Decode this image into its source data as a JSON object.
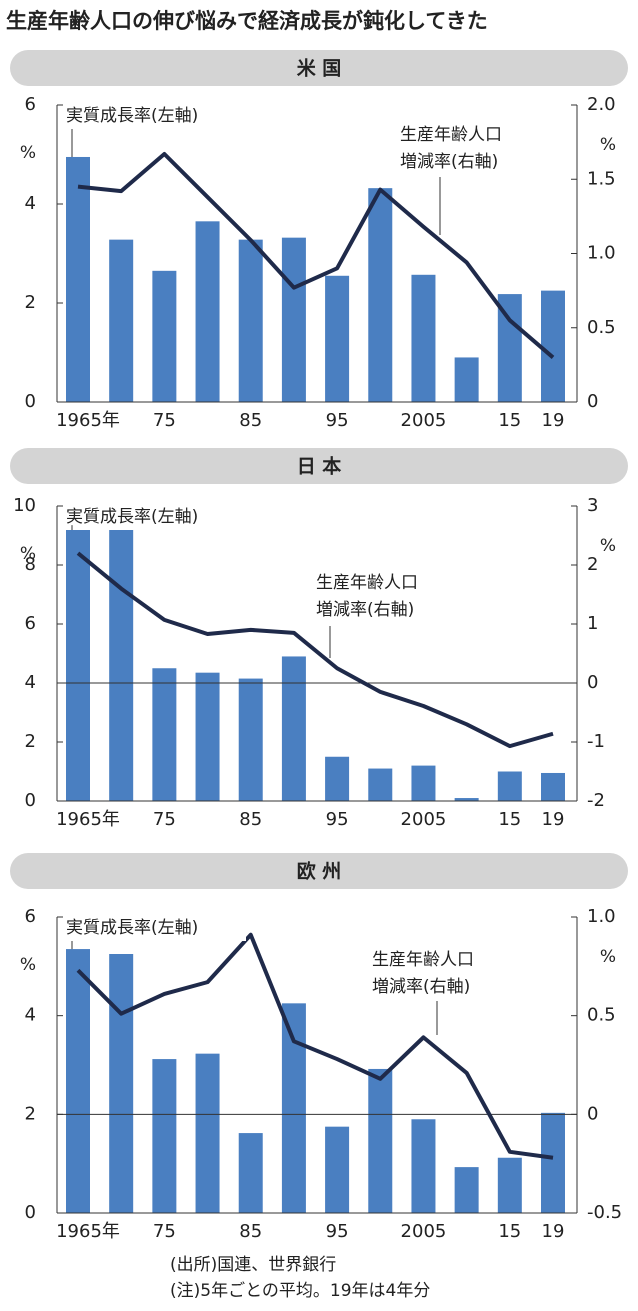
{
  "title": "生産年齢人口の伸び悩みで経済成長が鈍化してきた",
  "notes": [
    "(出所)国連、世界銀行",
    "(注)5年ごとの平均。19年は4年分"
  ],
  "chart_data": [
    {
      "type": "bar_line",
      "title": "米 国",
      "categories": [
        "1965年",
        null,
        "75",
        null,
        "85",
        null,
        "95",
        null,
        "2005",
        null,
        "15",
        "19"
      ],
      "ylim": [
        0,
        6
      ],
      "yticks": [
        0,
        2,
        4,
        6
      ],
      "y_unit": "%",
      "y2lim": [
        0,
        2
      ],
      "y2ticks": [
        0,
        0.5,
        {
          "value": 1,
          "label": "1.0"
        },
        1.5,
        {
          "value": 2,
          "label": "2.0"
        }
      ],
      "y2_unit": "%",
      "zero_line": false,
      "series": [
        {
          "name": "実質成長率(左軸)",
          "color": "#4a7fc1",
          "values": [
            4.95,
            3.28,
            2.65,
            3.65,
            3.28,
            3.32,
            2.55,
            4.32,
            2.57,
            0.9,
            2.18,
            2.25
          ]
        },
        {
          "name": "生産年齢人口\n増減率(右軸)",
          "color": "#1f2a4a",
          "axis": "y2",
          "values": [
            1.45,
            1.42,
            1.67,
            1.38,
            1.09,
            0.77,
            0.9,
            1.43,
            1.18,
            0.94,
            0.55,
            0.3
          ]
        }
      ]
    },
    {
      "type": "bar_line",
      "title": "日 本",
      "categories": [
        "1965年",
        null,
        "75",
        null,
        "85",
        null,
        "95",
        null,
        "2005",
        null,
        "15",
        "19"
      ],
      "ylim": [
        0,
        10
      ],
      "yticks": [
        0,
        2,
        4,
        6,
        8,
        10
      ],
      "y_unit": "%",
      "y2lim": [
        -2,
        3
      ],
      "y2ticks": [
        -2,
        -1,
        0,
        1,
        2,
        3
      ],
      "y2_unit": "%",
      "zero_line": true,
      "series": [
        {
          "name": "実質成長率(左軸)",
          "color": "#4a7fc1",
          "values": [
            9.35,
            9.4,
            4.5,
            4.35,
            4.15,
            4.9,
            1.5,
            1.1,
            1.2,
            0.1,
            1.0,
            0.95
          ]
        },
        {
          "name": "生産年齢人口\n増減率(右軸)",
          "color": "#1f2a4a",
          "axis": "y2",
          "values": [
            2.2,
            1.6,
            1.07,
            0.83,
            0.9,
            0.85,
            0.25,
            -0.15,
            -0.39,
            -0.7,
            -1.07,
            -0.86
          ]
        }
      ]
    },
    {
      "type": "bar_line",
      "title": "欧 州",
      "categories": [
        "1965年",
        null,
        "75",
        null,
        "85",
        null,
        "95",
        null,
        "2005",
        null,
        "15",
        "19"
      ],
      "ylim": [
        0,
        6
      ],
      "yticks": [
        0,
        2,
        4,
        6
      ],
      "y_unit": "%",
      "y2lim": [
        -0.5,
        1
      ],
      "y2ticks": [
        -0.5,
        0,
        0.5,
        {
          "value": 1,
          "label": "1.0"
        }
      ],
      "y2_unit": "%",
      "zero_line": true,
      "series": [
        {
          "name": "実質成長率(左軸)",
          "color": "#4a7fc1",
          "values": [
            5.35,
            5.25,
            3.12,
            3.23,
            1.62,
            4.25,
            1.75,
            2.92,
            1.9,
            0.93,
            1.12,
            2.03
          ]
        },
        {
          "name": "生産年齢人口\n増減率(右軸)",
          "color": "#1f2a4a",
          "axis": "y2",
          "values": [
            0.73,
            0.51,
            0.61,
            0.67,
            0.91,
            0.37,
            0.28,
            0.18,
            0.39,
            0.21,
            -0.19,
            -0.22
          ]
        }
      ]
    }
  ]
}
